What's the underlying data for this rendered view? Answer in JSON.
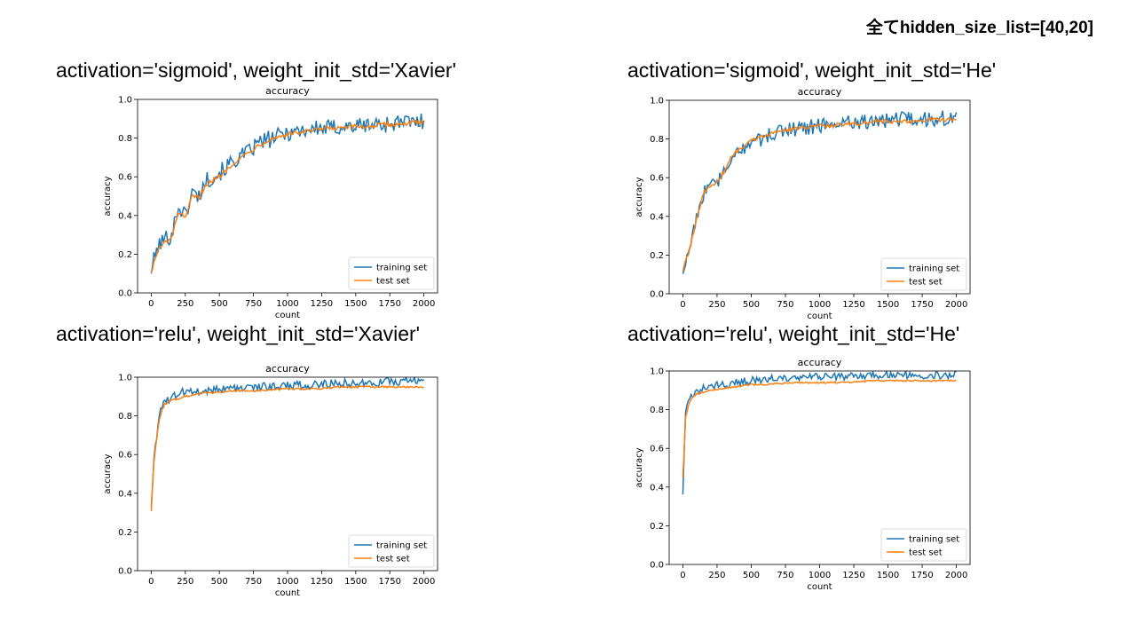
{
  "header_note": "全てhidden_size_list=[40,20]",
  "panels": [
    {
      "title": "activation='sigmoid',  weight_init_std='Xavier'",
      "chart_data": {
        "type": "line",
        "title": "accuracy",
        "xlabel": "count",
        "ylabel": "accuracy",
        "xlim": [
          -100,
          2100
        ],
        "ylim": [
          0,
          1.0
        ],
        "xticks": [
          0,
          250,
          500,
          750,
          1000,
          1250,
          1500,
          1750,
          2000
        ],
        "yticks": [
          0.0,
          0.2,
          0.4,
          0.6,
          0.8,
          1.0
        ],
        "grid": false,
        "legend": "lower-right",
        "series": [
          {
            "name": "training set",
            "color": "#1f77b4",
            "x": [
              0,
              50,
              100,
              150,
              200,
              250,
              300,
              350,
              400,
              450,
              500,
              600,
              700,
              800,
              900,
              1000,
              1100,
              1200,
              1300,
              1400,
              1500,
              1600,
              1700,
              1800,
              1900,
              2000
            ],
            "y": [
              0.12,
              0.24,
              0.28,
              0.3,
              0.45,
              0.4,
              0.52,
              0.5,
              0.58,
              0.6,
              0.62,
              0.68,
              0.72,
              0.78,
              0.8,
              0.83,
              0.84,
              0.85,
              0.85,
              0.86,
              0.86,
              0.87,
              0.87,
              0.88,
              0.88,
              0.89
            ],
            "noise": 0.045
          },
          {
            "name": "test set",
            "color": "#ff7f0e",
            "x": [
              0,
              50,
              100,
              150,
              200,
              250,
              300,
              350,
              400,
              450,
              500,
              600,
              700,
              800,
              900,
              1000,
              1100,
              1200,
              1300,
              1400,
              1500,
              1600,
              1700,
              1800,
              1900,
              2000
            ],
            "y": [
              0.11,
              0.22,
              0.26,
              0.28,
              0.42,
              0.38,
              0.5,
              0.49,
              0.56,
              0.58,
              0.6,
              0.67,
              0.72,
              0.77,
              0.8,
              0.82,
              0.83,
              0.84,
              0.85,
              0.85,
              0.86,
              0.86,
              0.87,
              0.87,
              0.88,
              0.88
            ],
            "noise": 0.012
          }
        ]
      }
    },
    {
      "title": "activation='sigmoid',  weight_init_std='He'",
      "chart_data": {
        "type": "line",
        "title": "accuracy",
        "xlabel": "count",
        "ylabel": "accuracy",
        "xlim": [
          -100,
          2100
        ],
        "ylim": [
          0,
          1.0
        ],
        "xticks": [
          0,
          250,
          500,
          750,
          1000,
          1250,
          1500,
          1750,
          2000
        ],
        "yticks": [
          0.0,
          0.2,
          0.4,
          0.6,
          0.8,
          1.0
        ],
        "grid": false,
        "legend": "lower-right",
        "series": [
          {
            "name": "training set",
            "color": "#1f77b4",
            "x": [
              0,
              50,
              100,
              150,
              200,
              250,
              300,
              350,
              400,
              450,
              500,
              600,
              700,
              800,
              900,
              1000,
              1100,
              1200,
              1300,
              1400,
              1500,
              1600,
              1700,
              1800,
              1900,
              2000
            ],
            "y": [
              0.12,
              0.25,
              0.4,
              0.52,
              0.55,
              0.58,
              0.62,
              0.68,
              0.72,
              0.76,
              0.78,
              0.81,
              0.84,
              0.85,
              0.86,
              0.87,
              0.88,
              0.89,
              0.89,
              0.89,
              0.9,
              0.9,
              0.9,
              0.9,
              0.91,
              0.9
            ],
            "noise": 0.04
          },
          {
            "name": "test set",
            "color": "#ff7f0e",
            "x": [
              0,
              50,
              100,
              150,
              200,
              250,
              300,
              350,
              400,
              450,
              500,
              600,
              700,
              800,
              900,
              1000,
              1100,
              1200,
              1300,
              1400,
              1500,
              1600,
              1700,
              1800,
              1900,
              2000
            ],
            "y": [
              0.12,
              0.23,
              0.38,
              0.52,
              0.55,
              0.58,
              0.63,
              0.7,
              0.74,
              0.77,
              0.79,
              0.82,
              0.84,
              0.85,
              0.86,
              0.87,
              0.87,
              0.88,
              0.88,
              0.89,
              0.89,
              0.89,
              0.89,
              0.9,
              0.9,
              0.9
            ],
            "noise": 0.01
          }
        ]
      }
    },
    {
      "title": "activation='relu',  weight_init_std='Xavier'",
      "chart_data": {
        "type": "line",
        "title": "accuracy",
        "xlabel": "count",
        "ylabel": "accuracy",
        "xlim": [
          -100,
          2100
        ],
        "ylim": [
          0,
          1.0
        ],
        "xticks": [
          0,
          250,
          500,
          750,
          1000,
          1250,
          1500,
          1750,
          2000
        ],
        "yticks": [
          0.0,
          0.2,
          0.4,
          0.6,
          0.8,
          1.0
        ],
        "grid": false,
        "legend": "lower-right",
        "series": [
          {
            "name": "training set",
            "color": "#1f77b4",
            "x": [
              0,
              20,
              40,
              60,
              80,
              100,
              150,
              200,
              300,
              400,
              500,
              600,
              800,
              1000,
              1200,
              1400,
              1600,
              1800,
              2000
            ],
            "y": [
              0.34,
              0.58,
              0.7,
              0.8,
              0.84,
              0.87,
              0.9,
              0.92,
              0.93,
              0.93,
              0.94,
              0.94,
              0.95,
              0.96,
              0.96,
              0.97,
              0.97,
              0.98,
              0.99
            ],
            "noise": 0.022
          },
          {
            "name": "test set",
            "color": "#ff7f0e",
            "x": [
              0,
              20,
              40,
              60,
              80,
              100,
              150,
              200,
              300,
              400,
              500,
              600,
              800,
              1000,
              1200,
              1400,
              1600,
              1800,
              2000
            ],
            "y": [
              0.31,
              0.56,
              0.68,
              0.78,
              0.83,
              0.86,
              0.88,
              0.89,
              0.91,
              0.92,
              0.92,
              0.93,
              0.93,
              0.94,
              0.94,
              0.95,
              0.95,
              0.95,
              0.95
            ],
            "noise": 0.005
          }
        ]
      }
    },
    {
      "title": "activation='relu',  weight_init_std='He'",
      "chart_data": {
        "type": "line",
        "title": "accuracy",
        "xlabel": "count",
        "ylabel": "accuracy",
        "xlim": [
          -100,
          2100
        ],
        "ylim": [
          0,
          1.0
        ],
        "xticks": [
          0,
          250,
          500,
          750,
          1000,
          1250,
          1500,
          1750,
          2000
        ],
        "yticks": [
          0.0,
          0.2,
          0.4,
          0.6,
          0.8,
          1.0
        ],
        "grid": false,
        "legend": "lower-right",
        "series": [
          {
            "name": "training set",
            "color": "#1f77b4",
            "x": [
              0,
              20,
              40,
              60,
              80,
              100,
              150,
              200,
              300,
              400,
              500,
              600,
              800,
              1000,
              1200,
              1400,
              1600,
              1800,
              2000
            ],
            "y": [
              0.37,
              0.78,
              0.84,
              0.86,
              0.88,
              0.89,
              0.91,
              0.92,
              0.93,
              0.94,
              0.95,
              0.96,
              0.96,
              0.97,
              0.97,
              0.98,
              0.98,
              0.98,
              0.98
            ],
            "noise": 0.02
          },
          {
            "name": "test set",
            "color": "#ff7f0e",
            "x": [
              0,
              20,
              40,
              60,
              80,
              100,
              150,
              200,
              300,
              400,
              500,
              600,
              800,
              1000,
              1200,
              1400,
              1600,
              1800,
              2000
            ],
            "y": [
              0.45,
              0.76,
              0.82,
              0.85,
              0.87,
              0.88,
              0.89,
              0.9,
              0.91,
              0.92,
              0.93,
              0.93,
              0.94,
              0.94,
              0.94,
              0.95,
              0.95,
              0.95,
              0.95
            ],
            "noise": 0.004
          }
        ]
      }
    }
  ]
}
